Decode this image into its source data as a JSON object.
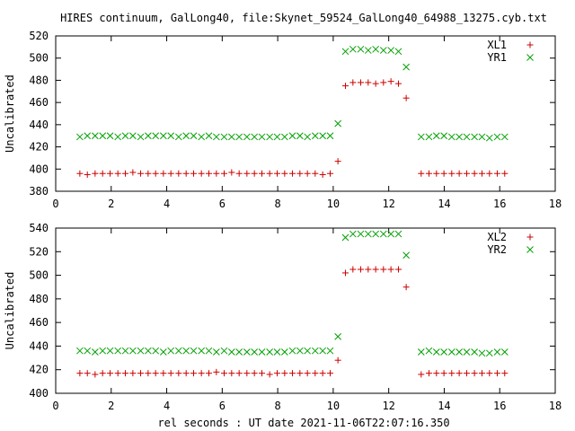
{
  "title": "HIRES continuum, GalLong40, file:Skynet_59524_GalLong40_64988_13275.cyb.txt",
  "xlabel": "rel seconds : UT date 2021-11-06T22:07:16.350",
  "chart_data": [
    {
      "type": "scatter",
      "ylabel": "Uncalibrated",
      "xlim": [
        0,
        18
      ],
      "ylim": [
        380,
        520
      ],
      "xticks": [
        0,
        2,
        4,
        6,
        8,
        10,
        12,
        14,
        16,
        18
      ],
      "yticks": [
        380,
        400,
        420,
        440,
        460,
        480,
        500,
        520
      ],
      "grid": false,
      "legend": "top-right",
      "series": [
        {
          "name": "XL1",
          "marker": "plus",
          "color": "#cc0000",
          "x": [
            0.87,
            1.14,
            1.42,
            1.69,
            1.96,
            2.24,
            2.51,
            2.78,
            3.06,
            3.33,
            3.6,
            3.88,
            4.15,
            4.43,
            4.7,
            4.97,
            5.25,
            5.52,
            5.79,
            6.07,
            6.34,
            6.61,
            6.89,
            7.16,
            7.43,
            7.71,
            7.98,
            8.25,
            8.53,
            8.8,
            9.07,
            9.35,
            9.62,
            9.89,
            10.17,
            10.44,
            10.71,
            10.99,
            11.26,
            11.53,
            11.81,
            12.08,
            12.35,
            12.63,
            12.9,
            13.17,
            13.45,
            13.72,
            13.99,
            14.27,
            14.54,
            14.81,
            15.09,
            15.36,
            15.63,
            15.91,
            16.18
          ],
          "y": [
            396,
            395,
            396,
            396,
            396,
            396,
            396,
            397,
            396,
            396,
            396,
            396,
            396,
            396,
            396,
            396,
            396,
            396,
            396,
            396,
            397,
            396,
            396,
            396,
            396,
            396,
            396,
            396,
            396,
            396,
            396,
            396,
            395,
            396,
            407,
            475,
            478,
            478,
            478,
            477,
            478,
            479,
            477,
            464,
            null,
            396,
            396,
            396,
            396,
            396,
            396,
            396,
            396,
            396,
            396,
            396,
            396
          ]
        },
        {
          "name": "YR1",
          "marker": "cross",
          "color": "#00a000",
          "x": [
            0.87,
            1.14,
            1.42,
            1.69,
            1.96,
            2.24,
            2.51,
            2.78,
            3.06,
            3.33,
            3.6,
            3.88,
            4.15,
            4.43,
            4.7,
            4.97,
            5.25,
            5.52,
            5.79,
            6.07,
            6.34,
            6.61,
            6.89,
            7.16,
            7.43,
            7.71,
            7.98,
            8.25,
            8.53,
            8.8,
            9.07,
            9.35,
            9.62,
            9.89,
            10.17,
            10.44,
            10.71,
            10.99,
            11.26,
            11.53,
            11.81,
            12.08,
            12.35,
            12.63,
            12.9,
            13.17,
            13.45,
            13.72,
            13.99,
            14.27,
            14.54,
            14.81,
            15.09,
            15.36,
            15.63,
            15.91,
            16.18
          ],
          "y": [
            429,
            430,
            430,
            430,
            430,
            429,
            430,
            430,
            429,
            430,
            430,
            430,
            430,
            429,
            430,
            430,
            429,
            430,
            429,
            429,
            429,
            429,
            429,
            429,
            429,
            429,
            429,
            429,
            430,
            430,
            429,
            430,
            430,
            430,
            441,
            506,
            508,
            508,
            507,
            508,
            507,
            507,
            506,
            492,
            null,
            429,
            429,
            430,
            430,
            429,
            429,
            429,
            429,
            429,
            428,
            429,
            429
          ]
        }
      ]
    },
    {
      "type": "scatter",
      "ylabel": "Uncalibrated",
      "xlim": [
        0,
        18
      ],
      "ylim": [
        400,
        540
      ],
      "xticks": [
        0,
        2,
        4,
        6,
        8,
        10,
        12,
        14,
        16,
        18
      ],
      "yticks": [
        400,
        420,
        440,
        460,
        480,
        500,
        520,
        540
      ],
      "grid": false,
      "legend": "top-right",
      "series": [
        {
          "name": "XL2",
          "marker": "plus",
          "color": "#cc0000",
          "x": [
            0.87,
            1.14,
            1.42,
            1.69,
            1.96,
            2.24,
            2.51,
            2.78,
            3.06,
            3.33,
            3.6,
            3.88,
            4.15,
            4.43,
            4.7,
            4.97,
            5.25,
            5.52,
            5.79,
            6.07,
            6.34,
            6.61,
            6.89,
            7.16,
            7.43,
            7.71,
            7.98,
            8.25,
            8.53,
            8.8,
            9.07,
            9.35,
            9.62,
            9.89,
            10.17,
            10.44,
            10.71,
            10.99,
            11.26,
            11.53,
            11.81,
            12.08,
            12.35,
            12.63,
            12.9,
            13.17,
            13.45,
            13.72,
            13.99,
            14.27,
            14.54,
            14.81,
            15.09,
            15.36,
            15.63,
            15.91,
            16.18
          ],
          "y": [
            417,
            417,
            416,
            417,
            417,
            417,
            417,
            417,
            417,
            417,
            417,
            417,
            417,
            417,
            417,
            417,
            417,
            417,
            418,
            417,
            417,
            417,
            417,
            417,
            417,
            416,
            417,
            417,
            417,
            417,
            417,
            417,
            417,
            417,
            428,
            502,
            505,
            505,
            505,
            505,
            505,
            505,
            505,
            490,
            null,
            416,
            417,
            417,
            417,
            417,
            417,
            417,
            417,
            417,
            417,
            417,
            417
          ]
        },
        {
          "name": "YR2",
          "marker": "cross",
          "color": "#00a000",
          "x": [
            0.87,
            1.14,
            1.42,
            1.69,
            1.96,
            2.24,
            2.51,
            2.78,
            3.06,
            3.33,
            3.6,
            3.88,
            4.15,
            4.43,
            4.7,
            4.97,
            5.25,
            5.52,
            5.79,
            6.07,
            6.34,
            6.61,
            6.89,
            7.16,
            7.43,
            7.71,
            7.98,
            8.25,
            8.53,
            8.8,
            9.07,
            9.35,
            9.62,
            9.89,
            10.17,
            10.44,
            10.71,
            10.99,
            11.26,
            11.53,
            11.81,
            12.08,
            12.35,
            12.63,
            12.9,
            13.17,
            13.45,
            13.72,
            13.99,
            14.27,
            14.54,
            14.81,
            15.09,
            15.36,
            15.63,
            15.91,
            16.18
          ],
          "y": [
            436,
            436,
            435,
            436,
            436,
            436,
            436,
            436,
            436,
            436,
            436,
            435,
            436,
            436,
            436,
            436,
            436,
            436,
            435,
            436,
            435,
            435,
            435,
            435,
            435,
            435,
            435,
            435,
            436,
            436,
            436,
            436,
            436,
            436,
            448,
            532,
            535,
            535,
            535,
            535,
            535,
            535,
            535,
            517,
            null,
            435,
            436,
            435,
            435,
            435,
            435,
            435,
            435,
            434,
            434,
            435,
            435
          ]
        }
      ]
    }
  ]
}
